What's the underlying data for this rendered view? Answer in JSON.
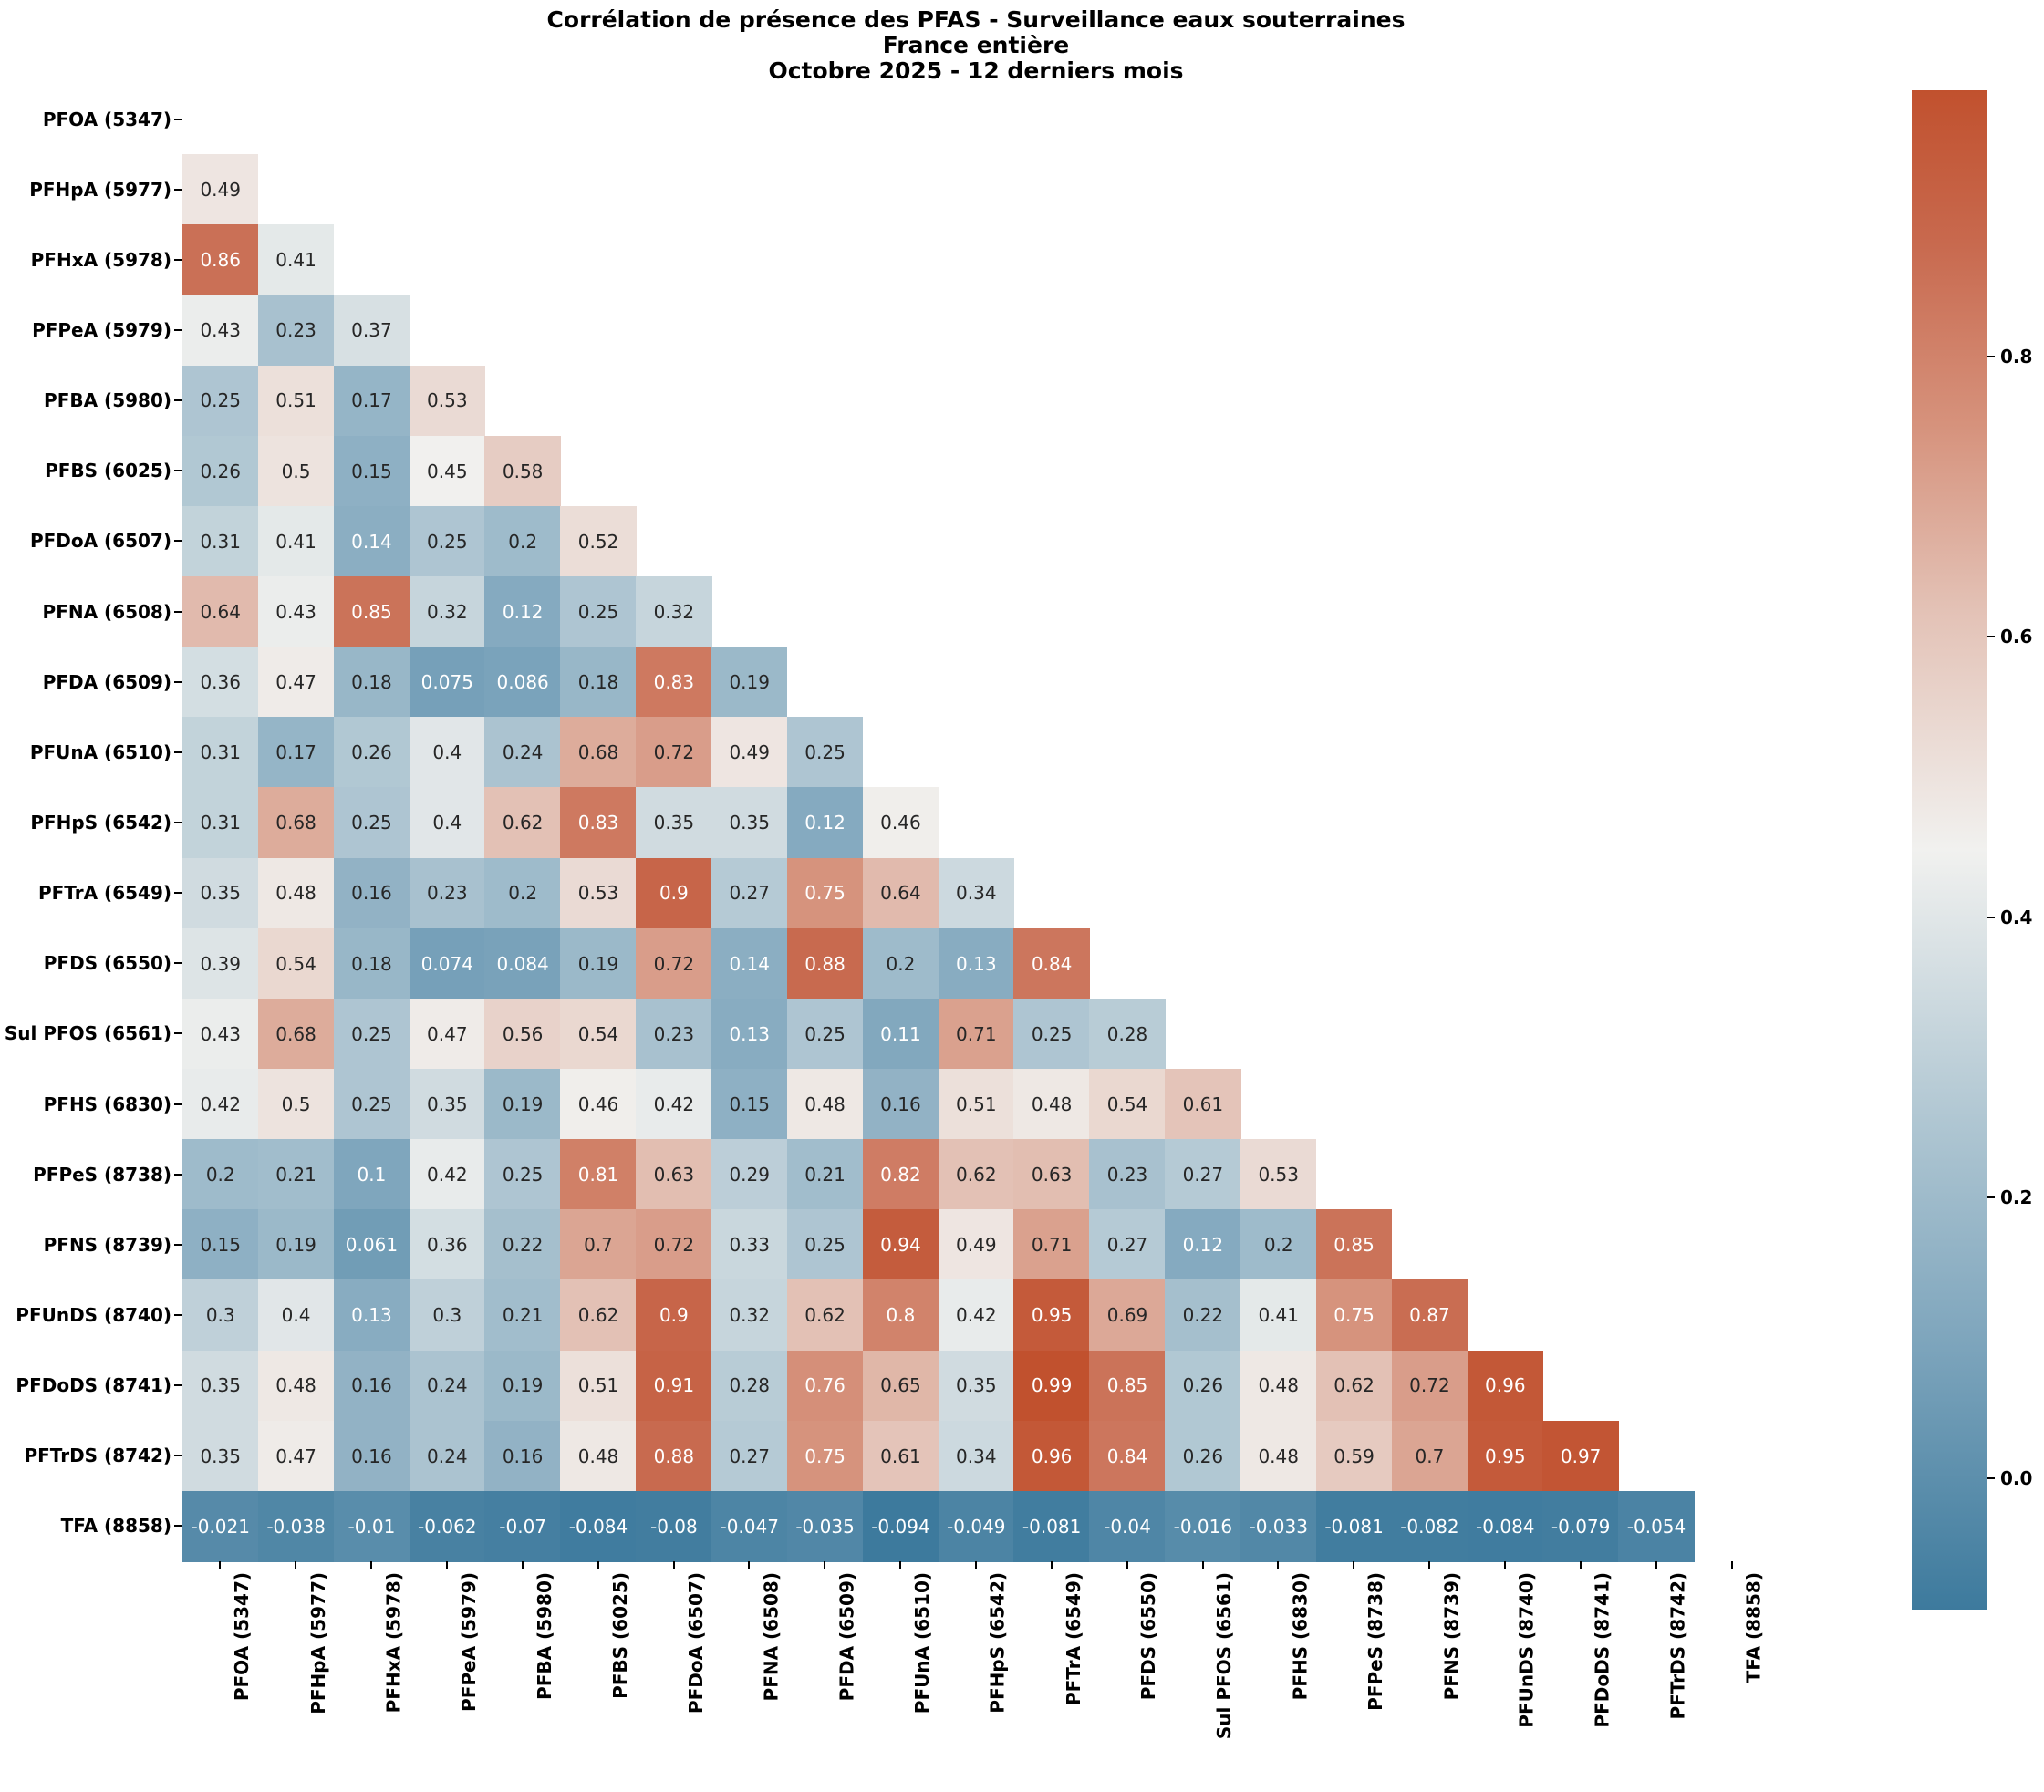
{
  "figure": {
    "title_line1": "Corrélation de présence des PFAS - Surveillance eaux souterraines",
    "title_line2": "France entière",
    "title_line3": "Octobre 2025 - 12 derniers mois"
  },
  "chart_data": {
    "type": "heatmap",
    "title": "Corrélation de présence des PFAS - Surveillance eaux souterraines | France entière | Octobre 2025 - 12 derniers mois",
    "layout": "lower-triangular correlation matrix, diagonal and upper triangle masked, no gridlines, annotated cells",
    "labels": [
      "PFOA (5347)",
      "PFHpA (5977)",
      "PFHxA (5978)",
      "PFPeA (5979)",
      "PFBA (5980)",
      "PFBS (6025)",
      "PFDoA (6507)",
      "PFNA (6508)",
      "PFDA (6509)",
      "PFUnA (6510)",
      "PFHpS (6542)",
      "PFTrA (6549)",
      "PFDS (6550)",
      "Sul PFOS (6561)",
      "PFHS (6830)",
      "PFPeS (8738)",
      "PFNS (8739)",
      "PFUnDS (8740)",
      "PFDoDS (8741)",
      "PFTrDS (8742)",
      "TFA (8858)"
    ],
    "rows": [
      {
        "label": "PFOA (5347)",
        "values": []
      },
      {
        "label": "PFHpA (5977)",
        "values": [
          0.49
        ]
      },
      {
        "label": "PFHxA (5978)",
        "values": [
          0.86,
          0.41
        ]
      },
      {
        "label": "PFPeA (5979)",
        "values": [
          0.43,
          0.23,
          0.37
        ]
      },
      {
        "label": "PFBA (5980)",
        "values": [
          0.25,
          0.51,
          0.17,
          0.53
        ]
      },
      {
        "label": "PFBS (6025)",
        "values": [
          0.26,
          0.5,
          0.15,
          0.45,
          0.58
        ]
      },
      {
        "label": "PFDoA (6507)",
        "values": [
          0.31,
          0.41,
          0.14,
          0.25,
          0.2,
          0.52
        ]
      },
      {
        "label": "PFNA (6508)",
        "values": [
          0.64,
          0.43,
          0.85,
          0.32,
          0.12,
          0.25,
          0.32
        ]
      },
      {
        "label": "PFDA (6509)",
        "values": [
          0.36,
          0.47,
          0.18,
          0.075,
          0.086,
          0.18,
          0.83,
          0.19
        ]
      },
      {
        "label": "PFUnA (6510)",
        "values": [
          0.31,
          0.17,
          0.26,
          0.4,
          0.24,
          0.68,
          0.72,
          0.49,
          0.25
        ]
      },
      {
        "label": "PFHpS (6542)",
        "values": [
          0.31,
          0.68,
          0.25,
          0.4,
          0.62,
          0.83,
          0.35,
          0.35,
          0.12,
          0.46
        ]
      },
      {
        "label": "PFTrA (6549)",
        "values": [
          0.35,
          0.48,
          0.16,
          0.23,
          0.2,
          0.53,
          0.9,
          0.27,
          0.75,
          0.64,
          0.34
        ]
      },
      {
        "label": "PFDS (6550)",
        "values": [
          0.39,
          0.54,
          0.18,
          0.074,
          0.084,
          0.19,
          0.72,
          0.14,
          0.88,
          0.2,
          0.13,
          0.84
        ]
      },
      {
        "label": "Sul PFOS (6561)",
        "values": [
          0.43,
          0.68,
          0.25,
          0.47,
          0.56,
          0.54,
          0.23,
          0.13,
          0.25,
          0.11,
          0.71,
          0.25,
          0.28
        ]
      },
      {
        "label": "PFHS (6830)",
        "values": [
          0.42,
          0.5,
          0.25,
          0.35,
          0.19,
          0.46,
          0.42,
          0.15,
          0.48,
          0.16,
          0.51,
          0.48,
          0.54,
          0.61
        ]
      },
      {
        "label": "PFPeS (8738)",
        "values": [
          0.2,
          0.21,
          0.1,
          0.42,
          0.25,
          0.81,
          0.63,
          0.29,
          0.21,
          0.82,
          0.62,
          0.63,
          0.23,
          0.27,
          0.53
        ]
      },
      {
        "label": "PFNS (8739)",
        "values": [
          0.15,
          0.19,
          0.061,
          0.36,
          0.22,
          0.7,
          0.72,
          0.33,
          0.25,
          0.94,
          0.49,
          0.71,
          0.27,
          0.12,
          0.2,
          0.85
        ]
      },
      {
        "label": "PFUnDS (8740)",
        "values": [
          0.3,
          0.4,
          0.13,
          0.3,
          0.21,
          0.62,
          0.9,
          0.32,
          0.62,
          0.8,
          0.42,
          0.95,
          0.69,
          0.22,
          0.41,
          0.75,
          0.87
        ]
      },
      {
        "label": "PFDoDS (8741)",
        "values": [
          0.35,
          0.48,
          0.16,
          0.24,
          0.19,
          0.51,
          0.91,
          0.28,
          0.76,
          0.65,
          0.35,
          0.99,
          0.85,
          0.26,
          0.48,
          0.62,
          0.72,
          0.96
        ]
      },
      {
        "label": "PFTrDS (8742)",
        "values": [
          0.35,
          0.47,
          0.16,
          0.24,
          0.16,
          0.48,
          0.88,
          0.27,
          0.75,
          0.61,
          0.34,
          0.96,
          0.84,
          0.26,
          0.48,
          0.59,
          0.7,
          0.95,
          0.97
        ]
      },
      {
        "label": "TFA (8858)",
        "values": [
          -0.021,
          -0.038,
          -0.01,
          -0.062,
          -0.07,
          -0.084,
          -0.08,
          -0.047,
          -0.035,
          -0.094,
          -0.049,
          -0.081,
          -0.04,
          -0.016,
          -0.033,
          -0.081,
          -0.082,
          -0.084,
          -0.079,
          -0.054
        ]
      }
    ],
    "vmin": -0.094,
    "vmax": 0.99,
    "colorbar": {
      "position": "right",
      "tick_labels": [
        "0.0",
        "0.2",
        "0.4",
        "0.6",
        "0.8"
      ],
      "tick_values": [
        0.0,
        0.2,
        0.4,
        0.6,
        0.8
      ]
    },
    "colormap": {
      "description": "diverging blue-white-red (seaborn diverging_palette(230,20) style)",
      "anchors": [
        {
          "t": 0.0,
          "c": [
            61,
            122,
            157
          ],
          "hex": "#3d7a9d"
        },
        {
          "t": 0.18,
          "c": [
            127,
            166,
            189
          ],
          "hex": "#7fa6bd"
        },
        {
          "t": 0.32,
          "c": [
            175,
            198,
            210
          ],
          "hex": "#afc6d2"
        },
        {
          "t": 0.5,
          "c": [
            241,
            241,
            239
          ],
          "hex": "#f1f1ef"
        },
        {
          "t": 0.66,
          "c": [
            227,
            193,
            181
          ],
          "hex": "#e3c1b5"
        },
        {
          "t": 0.78,
          "c": [
            214,
            146,
            124
          ],
          "hex": "#d6927c"
        },
        {
          "t": 0.9,
          "c": [
            200,
            105,
            78
          ],
          "hex": "#c8694e"
        },
        {
          "t": 1.0,
          "c": [
            193,
            81,
            46
          ],
          "hex": "#c1512e"
        }
      ],
      "annotation_dark": "#262626",
      "annotation_light": "#ffffff",
      "luminance_threshold": 0.405
    }
  }
}
